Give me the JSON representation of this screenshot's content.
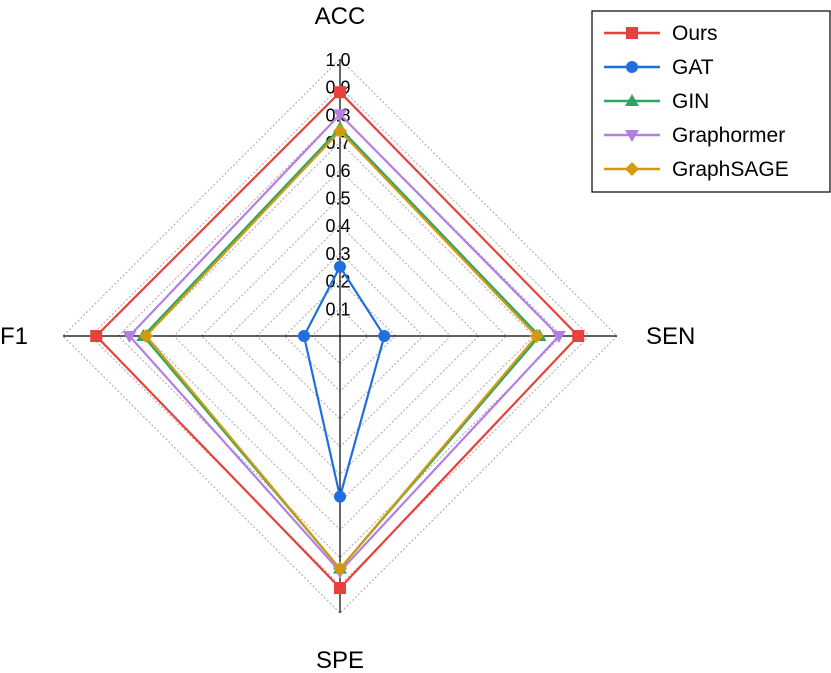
{
  "chart_data": {
    "type": "radar",
    "axes": [
      "ACC",
      "SEN",
      "SPE",
      "F1"
    ],
    "ticks": [
      "0.1",
      "0.2",
      "0.3",
      "0.4",
      "0.5",
      "0.6",
      "0.7",
      "0.8",
      "0.9",
      "1.0"
    ],
    "range": [
      0,
      1.0
    ],
    "grid": true,
    "legend_position": "top-right",
    "series": [
      {
        "name": "Ours",
        "values": [
          0.88,
          0.86,
          0.91,
          0.88
        ],
        "color": "#e8403c",
        "marker": "square"
      },
      {
        "name": "GAT",
        "values": [
          0.25,
          0.16,
          0.58,
          0.13
        ],
        "color": "#1f6fe0",
        "marker": "circle"
      },
      {
        "name": "GIN",
        "values": [
          0.75,
          0.72,
          0.84,
          0.71
        ],
        "color": "#2aa862",
        "marker": "triangle-up"
      },
      {
        "name": "Graphormer",
        "values": [
          0.8,
          0.79,
          0.85,
          0.76
        ],
        "color": "#b37fe0",
        "marker": "triangle-down"
      },
      {
        "name": "GraphSAGE",
        "values": [
          0.74,
          0.71,
          0.84,
          0.7
        ],
        "color": "#d29a12",
        "marker": "diamond"
      }
    ]
  }
}
